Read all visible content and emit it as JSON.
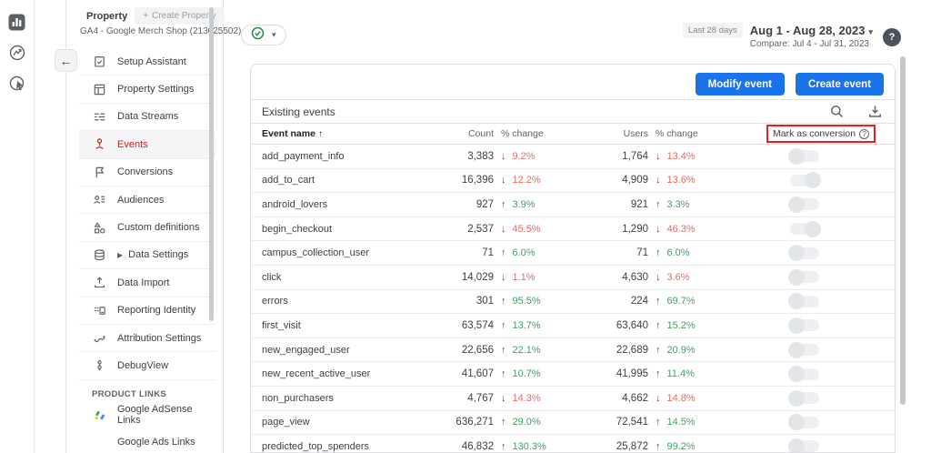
{
  "colors": {
    "accent_blue": "#1a73e8",
    "positive_green": "#188038",
    "negative_red": "#c5221f",
    "active_item_red": "#c5221f",
    "annotation_red": "#f21b1b"
  },
  "glyphs": {
    "back": "←",
    "caret": "▾",
    "plus": "+",
    "up": "↑",
    "down": "↓",
    "sort": "↑",
    "help": "?"
  },
  "left_rail": {
    "items": [
      {
        "icon": "reports-icon"
      },
      {
        "icon": "explore-icon"
      },
      {
        "icon": "advertising-icon"
      }
    ]
  },
  "sidebar": {
    "property_label": "Property",
    "create_property_label": "Create Property",
    "account_name": "GA4 - Google Merch Shop (213025502)",
    "items": [
      {
        "label": "Setup Assistant",
        "icon": "setup-assistant-icon",
        "active": false,
        "expandable": false
      },
      {
        "label": "Property Settings",
        "icon": "property-settings-icon",
        "active": false,
        "expandable": false
      },
      {
        "label": "Data Streams",
        "icon": "data-streams-icon",
        "active": false,
        "expandable": false
      },
      {
        "label": "Events",
        "icon": "events-icon",
        "active": true,
        "expandable": false
      },
      {
        "label": "Conversions",
        "icon": "conversions-icon",
        "active": false,
        "expandable": false
      },
      {
        "label": "Audiences",
        "icon": "audiences-icon",
        "active": false,
        "expandable": false
      },
      {
        "label": "Custom definitions",
        "icon": "custom-definitions-icon",
        "active": false,
        "expandable": false
      },
      {
        "label": "Data Settings",
        "icon": "data-settings-icon",
        "active": false,
        "expandable": true
      },
      {
        "label": "Data Import",
        "icon": "data-import-icon",
        "active": false,
        "expandable": false
      },
      {
        "label": "Reporting Identity",
        "icon": "reporting-identity-icon",
        "active": false,
        "expandable": false
      },
      {
        "label": "Attribution Settings",
        "icon": "attribution-settings-icon",
        "active": false,
        "expandable": false
      },
      {
        "label": "DebugView",
        "icon": "debugview-icon",
        "active": false,
        "expandable": false
      }
    ],
    "product_links_header": "PRODUCT LINKS",
    "product_links": [
      {
        "label": "Google AdSense Links",
        "icon": "adsense-icon"
      },
      {
        "label": "Google Ads Links",
        "icon": ""
      }
    ]
  },
  "header": {
    "period_badge": "Last 28 days",
    "date_range": "Aug 1 - Aug 28, 2023",
    "compare": "Compare: Jul 4 - Jul 31, 2023"
  },
  "main": {
    "modify_event_label": "Modify event",
    "create_event_label": "Create event",
    "existing_events_label": "Existing events",
    "table": {
      "headers": {
        "event_name": "Event name",
        "count": "Count",
        "change": "% change",
        "users": "Users",
        "change2": "% change",
        "conversion": "Mark as conversion"
      },
      "rows": [
        {
          "name": "add_payment_info",
          "count": "3,383",
          "count_dir": "down",
          "count_change": "9.2%",
          "users": "1,764",
          "users_dir": "down",
          "users_change": "13.4%",
          "toggle": "off",
          "knob": "left"
        },
        {
          "name": "add_to_cart",
          "count": "16,396",
          "count_dir": "down",
          "count_change": "12.2%",
          "users": "4,909",
          "users_dir": "down",
          "users_change": "13.6%",
          "toggle": "off",
          "knob": "right"
        },
        {
          "name": "android_lovers",
          "count": "927",
          "count_dir": "up",
          "count_change": "3.9%",
          "users": "921",
          "users_dir": "up",
          "users_change": "3.3%",
          "toggle": "off",
          "knob": "left"
        },
        {
          "name": "begin_checkout",
          "count": "2,537",
          "count_dir": "down",
          "count_change": "45.5%",
          "users": "1,290",
          "users_dir": "down",
          "users_change": "46.3%",
          "toggle": "off",
          "knob": "right"
        },
        {
          "name": "campus_collection_user",
          "count": "71",
          "count_dir": "up",
          "count_change": "6.0%",
          "users": "71",
          "users_dir": "up",
          "users_change": "6.0%",
          "toggle": "off",
          "knob": "left"
        },
        {
          "name": "click",
          "count": "14,029",
          "count_dir": "down",
          "count_change": "1.1%",
          "users": "4,630",
          "users_dir": "down",
          "users_change": "3.6%",
          "toggle": "off",
          "knob": "left"
        },
        {
          "name": "errors",
          "count": "301",
          "count_dir": "up",
          "count_change": "95.5%",
          "users": "224",
          "users_dir": "up",
          "users_change": "69.7%",
          "toggle": "off",
          "knob": "left"
        },
        {
          "name": "first_visit",
          "count": "63,574",
          "count_dir": "up",
          "count_change": "13.7%",
          "users": "63,640",
          "users_dir": "up",
          "users_change": "15.2%",
          "toggle": "off",
          "knob": "left"
        },
        {
          "name": "new_engaged_user",
          "count": "22,656",
          "count_dir": "up",
          "count_change": "22.1%",
          "users": "22,689",
          "users_dir": "up",
          "users_change": "20.9%",
          "toggle": "off",
          "knob": "left"
        },
        {
          "name": "new_recent_active_user",
          "count": "41,607",
          "count_dir": "up",
          "count_change": "10.7%",
          "users": "41,995",
          "users_dir": "up",
          "users_change": "11.4%",
          "toggle": "off",
          "knob": "left"
        },
        {
          "name": "non_purchasers",
          "count": "4,767",
          "count_dir": "down",
          "count_change": "14.3%",
          "users": "4,662",
          "users_dir": "down",
          "users_change": "14.8%",
          "toggle": "off",
          "knob": "left"
        },
        {
          "name": "page_view",
          "count": "636,271",
          "count_dir": "up",
          "count_change": "29.0%",
          "users": "72,541",
          "users_dir": "up",
          "users_change": "14.5%",
          "toggle": "off",
          "knob": "left"
        },
        {
          "name": "predicted_top_spenders",
          "count": "46,832",
          "count_dir": "up",
          "count_change": "130.3%",
          "users": "25,872",
          "users_dir": "up",
          "users_change": "99.2%",
          "toggle": "off",
          "knob": "left"
        }
      ]
    }
  }
}
